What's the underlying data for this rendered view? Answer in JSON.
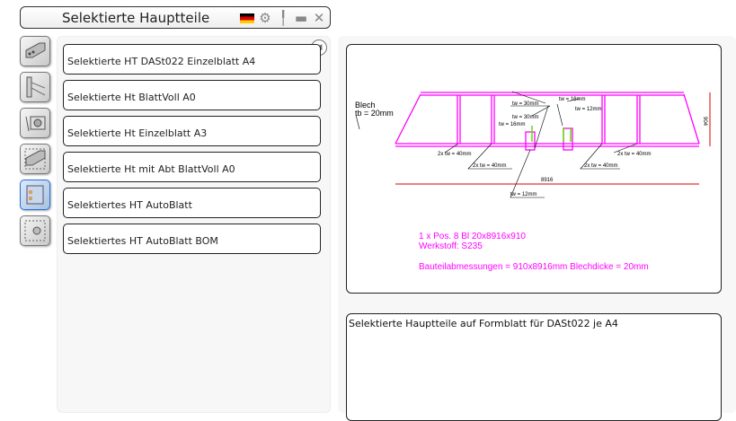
{
  "window": {
    "title": "Selektierte Hauptteile",
    "icons": [
      "german-flag-icon",
      "gear-icon",
      "pin-icon",
      "minimize-icon",
      "close-icon"
    ]
  },
  "sidebar": {
    "active_index": 4,
    "icons": [
      "box-beam-icon",
      "frame-icon",
      "camera-part-icon",
      "box-beam-dashed-icon",
      "plate-selected-icon",
      "camera-dashed-icon"
    ]
  },
  "templates": {
    "items": [
      {
        "label": "Selektierte HT DASt022 Einzelblatt A4"
      },
      {
        "label": "Selektierte Ht BlattVoll A0"
      },
      {
        "label": "Selektierte Ht Einzelblatt A3"
      },
      {
        "label": "Selektierte Ht mit Abt BlattVoll A0"
      },
      {
        "label": "Selektiertes HT AutoBlatt"
      },
      {
        "label": "Selektiertes HT AutoBlatt BOM"
      }
    ]
  },
  "preview": {
    "labels": {
      "blech": "Blech",
      "tb": "tb = 20mm",
      "tw30a": "tw = 30mm",
      "tw30b": "tw = 30mm",
      "tw16a": "tw = 16mm",
      "tw16b": "tw = 16mm",
      "tw12a": "tw = 12mm",
      "tw12b": "tw = 12mm",
      "w40a": "2x tw = 40mm",
      "w40b": "2x tw = 40mm",
      "w40c": "2x tw = 40mm",
      "w40d": "2x tw = 40mm",
      "length": "8916",
      "height": "904"
    },
    "line1": "1 x Pos. 8 Bl 20x8916x910",
    "line2": "Werkstoff: S235",
    "line3": "Bauteilabmessungen = 910x8916mm Blechdicke = 20mm",
    "colors": {
      "part": "#ff00ff",
      "weld": "#66dd00",
      "dimension": "#dd0000"
    }
  },
  "description": "Selektierte Hauptteile auf Formblatt für DASt022 je A4"
}
